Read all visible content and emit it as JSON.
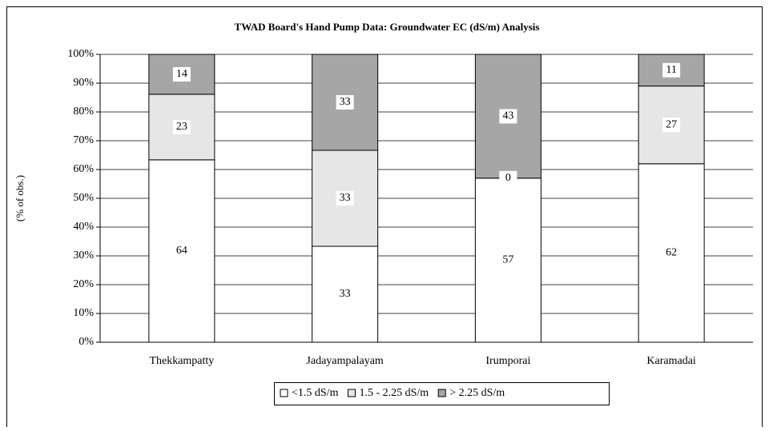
{
  "chart_data": {
    "type": "bar",
    "stacked": true,
    "percent": true,
    "title": "TWAD Board's Hand Pump Data: Groundwater EC (dS/m) Analysis",
    "ylabel": "(% of obs.)",
    "categories": [
      "Thekkampatty",
      "Jadayampalayam",
      "Irumporai",
      "Karamadai"
    ],
    "series": [
      {
        "name": "<1.5 dS/m",
        "color": "#ffffff",
        "values": [
          64,
          33,
          57,
          62
        ]
      },
      {
        "name": "1.5 - 2.25 dS/m",
        "color": "#e6e6e6",
        "values": [
          23,
          33,
          0,
          27
        ]
      },
      {
        "name": "> 2.25 dS/m",
        "color": "#a6a6a6",
        "values": [
          14,
          33,
          43,
          11
        ]
      }
    ],
    "ylim": [
      0,
      100
    ],
    "yticks": [
      {
        "value": 0,
        "label": "0%"
      },
      {
        "value": 10,
        "label": "10%"
      },
      {
        "value": 20,
        "label": "20%"
      },
      {
        "value": 30,
        "label": "30%"
      },
      {
        "value": 40,
        "label": "40%"
      },
      {
        "value": 50,
        "label": "50%"
      },
      {
        "value": 60,
        "label": "60%"
      },
      {
        "value": 70,
        "label": "70%"
      },
      {
        "value": 80,
        "label": "80%"
      },
      {
        "value": 90,
        "label": "90%"
      },
      {
        "value": 100,
        "label": "100%"
      }
    ],
    "grid": true,
    "legend": "bottom"
  }
}
